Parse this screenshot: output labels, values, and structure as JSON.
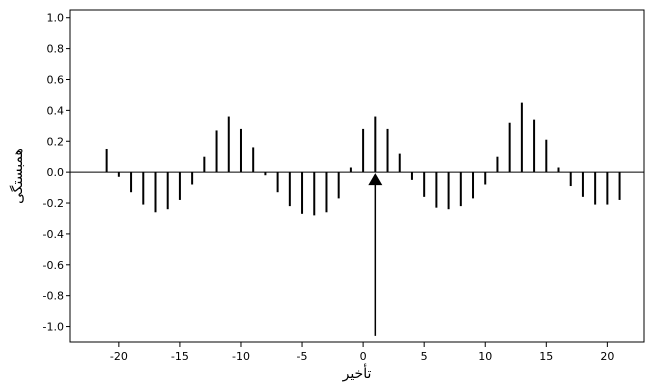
{
  "chart_data": {
    "type": "bar",
    "subtype": "stem",
    "title": "",
    "xlabel": "تأخیر",
    "ylabel": "همبستگی",
    "xlim": [
      -24,
      23
    ],
    "ylim": [
      -1.1,
      1.05
    ],
    "grid": false,
    "x_ticks": [
      -20,
      -15,
      -10,
      -5,
      0,
      5,
      10,
      15,
      20
    ],
    "x_tick_labels": [
      "-20",
      "-15",
      "-10",
      "-5",
      "0",
      "5",
      "10",
      "15",
      "20"
    ],
    "y_ticks": [
      -1.0,
      -0.8,
      -0.6,
      -0.4,
      -0.2,
      0.0,
      0.2,
      0.4,
      0.6,
      0.8,
      1.0
    ],
    "y_tick_labels": [
      "-1.0",
      "-0.8",
      "-0.6",
      "-0.4",
      "-0.2",
      "0.0",
      "0.2",
      "0.4",
      "0.6",
      "0.8",
      "1.0"
    ],
    "x": [
      -21,
      -20,
      -19,
      -18,
      -17,
      -16,
      -15,
      -14,
      -13,
      -12,
      -11,
      -10,
      -9,
      -8,
      -7,
      -6,
      -5,
      -4,
      -3,
      -2,
      -1,
      0,
      1,
      2,
      3,
      4,
      5,
      6,
      7,
      8,
      9,
      10,
      11,
      12,
      13,
      14,
      15,
      16,
      17,
      18,
      19,
      20,
      21
    ],
    "values": [
      0.15,
      -0.03,
      -0.13,
      -0.21,
      -0.26,
      -0.24,
      -0.18,
      -0.08,
      0.1,
      0.27,
      0.36,
      0.28,
      0.16,
      -0.02,
      -0.13,
      -0.22,
      -0.27,
      -0.28,
      -0.26,
      -0.17,
      0.03,
      0.28,
      0.36,
      0.28,
      0.12,
      -0.05,
      -0.16,
      -0.23,
      -0.24,
      -0.22,
      -0.17,
      -0.08,
      0.1,
      0.32,
      0.45,
      0.34,
      0.21,
      0.03,
      -0.09,
      -0.16,
      -0.21,
      -0.21,
      -0.18
    ],
    "annotation": {
      "type": "arrow",
      "x": 1,
      "y_from": -1.06,
      "y_to": 0.0
    }
  }
}
